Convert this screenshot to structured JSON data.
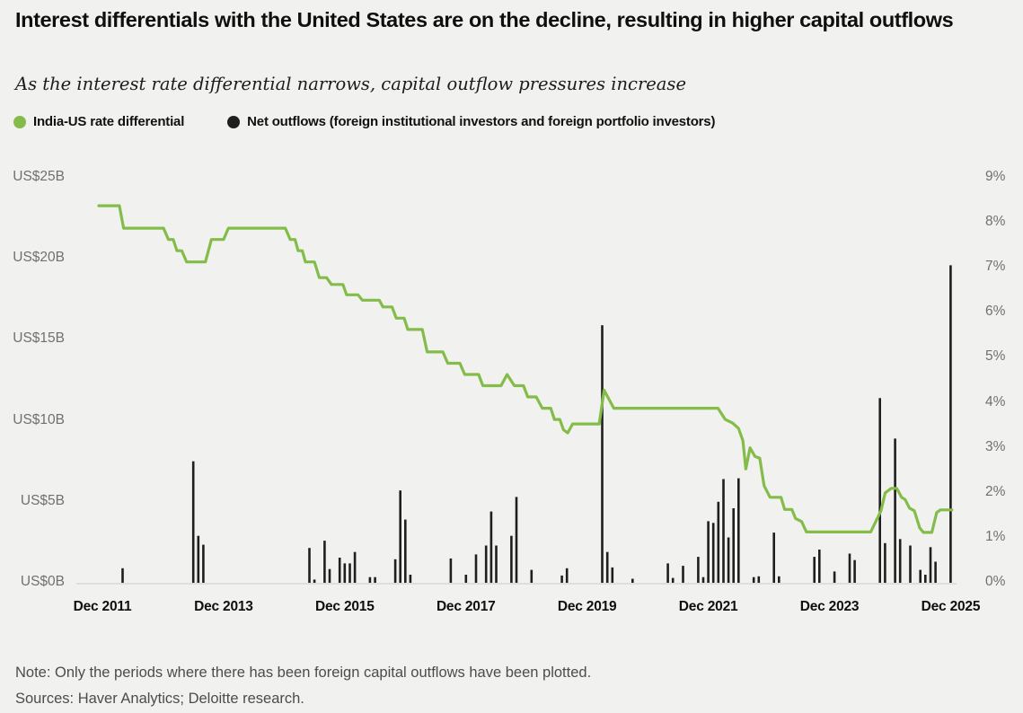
{
  "header": {
    "title": "Interest differentials with the United States are on the decline, resulting in higher capital outflows",
    "subtitle": "As the interest rate differential narrows, capital outflow pressures increase"
  },
  "legend": {
    "items": [
      {
        "label": "India-US rate differential",
        "color": "#84bc49"
      },
      {
        "label": "Net outflows (foreign institutional investors and foreign portfolio investors)",
        "color": "#1f1f1f"
      }
    ]
  },
  "footer": {
    "note": "Note: Only the periods where there has been foreign capital outflows have been plotted.",
    "sources": "Sources: Haver Analytics; Deloitte research."
  },
  "colors": {
    "background": "#f1f1ef",
    "line_green": "#84bc49",
    "bar_black": "#1f1f1f",
    "axis_text": "#707070",
    "baseline": "#d9d9d4"
  },
  "chart_data": {
    "type": "line+bar",
    "title": "Interest differentials with the United States are on the decline, resulting in higher capital outflows",
    "subtitle": "As the interest rate differential narrows, capital outflow pressures increase",
    "grid": "off",
    "legend_position": "top-left",
    "x_axis": {
      "tick_labels": [
        "Dec 2011",
        "Dec 2013",
        "Dec 2015",
        "Dec 2017",
        "Dec 2019",
        "Dec 2021",
        "Dec 2023",
        "Dec 2025"
      ],
      "tick_t_years_since_dec2011": [
        0,
        2,
        4,
        6,
        8,
        10,
        12,
        14
      ]
    },
    "left_axis": {
      "title": "Net outflows (US$B)",
      "min": 0,
      "max": 25,
      "tick_labels": [
        "US$0B",
        "US$5B",
        "US$10B",
        "US$15B",
        "US$20B",
        "US$25B"
      ],
      "tick_values": [
        0,
        5,
        10,
        15,
        20,
        25
      ]
    },
    "right_axis": {
      "title": "Rate differential (%)",
      "min": 0,
      "max": 9,
      "tick_labels": [
        "0%",
        "1%",
        "2%",
        "3%",
        "4%",
        "5%",
        "6%",
        "7%",
        "8%",
        "9%"
      ],
      "tick_values": [
        0,
        1,
        2,
        3,
        4,
        5,
        6,
        7,
        8,
        9
      ]
    },
    "series": [
      {
        "name": "India-US rate differential",
        "type": "line",
        "axis": "right",
        "unit": "%",
        "color": "#84bc49",
        "points_t_pct": [
          [
            -0.06,
            8.38
          ],
          [
            0.28,
            8.38
          ],
          [
            0.35,
            7.88
          ],
          [
            1.01,
            7.88
          ],
          [
            1.09,
            7.63
          ],
          [
            1.17,
            7.63
          ],
          [
            1.23,
            7.38
          ],
          [
            1.31,
            7.38
          ],
          [
            1.39,
            7.13
          ],
          [
            1.7,
            7.13
          ],
          [
            1.8,
            7.63
          ],
          [
            2.0,
            7.63
          ],
          [
            2.08,
            7.88
          ],
          [
            3.02,
            7.88
          ],
          [
            3.1,
            7.63
          ],
          [
            3.18,
            7.63
          ],
          [
            3.23,
            7.38
          ],
          [
            3.3,
            7.38
          ],
          [
            3.35,
            7.13
          ],
          [
            3.5,
            7.13
          ],
          [
            3.58,
            6.78
          ],
          [
            3.7,
            6.78
          ],
          [
            3.78,
            6.63
          ],
          [
            3.97,
            6.63
          ],
          [
            4.03,
            6.4
          ],
          [
            4.22,
            6.4
          ],
          [
            4.29,
            6.28
          ],
          [
            4.57,
            6.28
          ],
          [
            4.63,
            6.13
          ],
          [
            4.78,
            6.13
          ],
          [
            4.85,
            5.88
          ],
          [
            4.98,
            5.88
          ],
          [
            5.04,
            5.63
          ],
          [
            5.28,
            5.63
          ],
          [
            5.36,
            5.13
          ],
          [
            5.62,
            5.13
          ],
          [
            5.7,
            4.88
          ],
          [
            5.9,
            4.88
          ],
          [
            5.98,
            4.63
          ],
          [
            6.21,
            4.63
          ],
          [
            6.28,
            4.38
          ],
          [
            6.58,
            4.38
          ],
          [
            6.68,
            4.63
          ],
          [
            6.8,
            4.38
          ],
          [
            6.95,
            4.38
          ],
          [
            7.02,
            4.13
          ],
          [
            7.16,
            4.13
          ],
          [
            7.26,
            3.88
          ],
          [
            7.4,
            3.88
          ],
          [
            7.46,
            3.63
          ],
          [
            7.55,
            3.63
          ],
          [
            7.61,
            3.4
          ],
          [
            7.68,
            3.33
          ],
          [
            7.76,
            3.53
          ],
          [
            8.2,
            3.53
          ],
          [
            8.28,
            4.28
          ],
          [
            8.44,
            3.88
          ],
          [
            10.16,
            3.88
          ],
          [
            10.28,
            3.63
          ],
          [
            10.4,
            3.55
          ],
          [
            10.5,
            3.43
          ],
          [
            10.57,
            3.16
          ],
          [
            10.62,
            2.53
          ],
          [
            10.69,
            3.0
          ],
          [
            10.77,
            2.81
          ],
          [
            10.85,
            2.77
          ],
          [
            10.92,
            2.16
          ],
          [
            11.02,
            1.9
          ],
          [
            11.2,
            1.9
          ],
          [
            11.26,
            1.63
          ],
          [
            11.38,
            1.63
          ],
          [
            11.44,
            1.43
          ],
          [
            11.54,
            1.36
          ],
          [
            11.62,
            1.13
          ],
          [
            12.68,
            1.13
          ],
          [
            12.85,
            1.6
          ],
          [
            12.92,
            2.0
          ],
          [
            13.02,
            2.1
          ],
          [
            13.11,
            2.1
          ],
          [
            13.19,
            1.9
          ],
          [
            13.25,
            1.85
          ],
          [
            13.32,
            1.66
          ],
          [
            13.4,
            1.6
          ],
          [
            13.49,
            1.22
          ],
          [
            13.55,
            1.12
          ],
          [
            13.69,
            1.12
          ],
          [
            13.77,
            1.56
          ],
          [
            13.83,
            1.62
          ],
          [
            14.02,
            1.62
          ]
        ]
      },
      {
        "name": "Net outflows (foreign institutional investors and foreign portfolio investors)",
        "type": "bar",
        "axis": "left",
        "unit": "US$B",
        "color": "#1f1f1f",
        "bars_month_value": [
          [
            "Apr 2012",
            0.9
          ],
          [
            "Jun 2013",
            7.5
          ],
          [
            "Jul 2013",
            2.9
          ],
          [
            "Aug 2013",
            2.35
          ],
          [
            "May 2015",
            2.15
          ],
          [
            "Jun 2015",
            0.2
          ],
          [
            "Aug 2015",
            2.6
          ],
          [
            "Sep 2015",
            0.85
          ],
          [
            "Nov 2015",
            1.55
          ],
          [
            "Dec 2015",
            1.2
          ],
          [
            "Jan 2016",
            1.2
          ],
          [
            "Feb 2016",
            1.9
          ],
          [
            "May 2016",
            0.35
          ],
          [
            "Jun 2016",
            0.35
          ],
          [
            "Oct 2016",
            1.45
          ],
          [
            "Nov 2016",
            5.7
          ],
          [
            "Dec 2016",
            3.9
          ],
          [
            "Jan 2017",
            0.5
          ],
          [
            "Sep 2017",
            1.5
          ],
          [
            "Dec 2017",
            0.5
          ],
          [
            "Feb 2018",
            1.75
          ],
          [
            "Apr 2018",
            2.3
          ],
          [
            "May 2018",
            4.4
          ],
          [
            "Jun 2018",
            2.3
          ],
          [
            "Sep 2018",
            2.9
          ],
          [
            "Oct 2018",
            5.3
          ],
          [
            "Jan 2019",
            0.8
          ],
          [
            "Jul 2019",
            0.45
          ],
          [
            "Aug 2019",
            0.9
          ],
          [
            "Mar 2020",
            15.9
          ],
          [
            "Apr 2020",
            1.9
          ],
          [
            "May 2020",
            0.95
          ],
          [
            "Sep 2020",
            0.25
          ],
          [
            "Apr 2021",
            1.2
          ],
          [
            "May 2021",
            0.3
          ],
          [
            "Jul 2021",
            1.05
          ],
          [
            "Oct 2021",
            1.6
          ],
          [
            "Nov 2021",
            0.35
          ],
          [
            "Dec 2021",
            3.8
          ],
          [
            "Jan 2022",
            3.7
          ],
          [
            "Feb 2022",
            5.0
          ],
          [
            "Mar 2022",
            6.4
          ],
          [
            "Apr 2022",
            2.8
          ],
          [
            "May 2022",
            4.6
          ],
          [
            "Jun 2022",
            6.45
          ],
          [
            "Sep 2022",
            0.35
          ],
          [
            "Oct 2022",
            0.4
          ],
          [
            "Jan 2023",
            3.1
          ],
          [
            "Feb 2023",
            0.4
          ],
          [
            "Sep 2023",
            1.6
          ],
          [
            "Oct 2023",
            2.05
          ],
          [
            "Jan 2024",
            0.7
          ],
          [
            "Apr 2024",
            1.8
          ],
          [
            "May 2024",
            1.4
          ],
          [
            "Oct 2024",
            11.4
          ],
          [
            "Nov 2024",
            2.45
          ],
          [
            "Jan 2025",
            8.9
          ],
          [
            "Feb 2025",
            2.7
          ],
          [
            "Apr 2025",
            2.3
          ],
          [
            "Jun 2025",
            0.8
          ],
          [
            "Jul 2025",
            0.5
          ],
          [
            "Aug 2025",
            2.2
          ],
          [
            "Sep 2025",
            1.3
          ],
          [
            "Dec 2025",
            19.6
          ]
        ]
      }
    ]
  }
}
